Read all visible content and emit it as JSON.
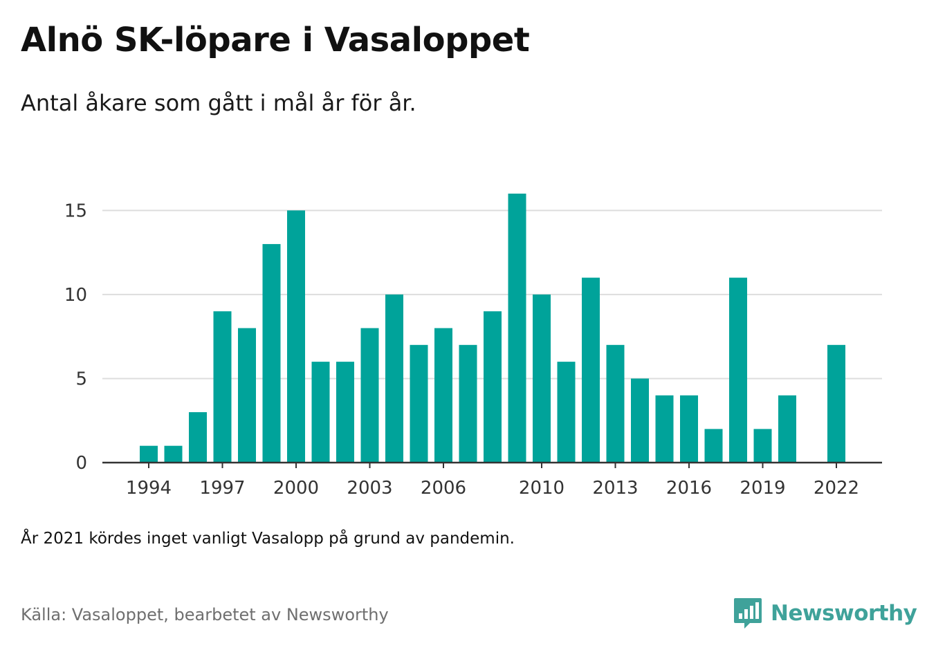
{
  "header": {
    "title": "Alnö SK-löpare i Vasaloppet",
    "subtitle": "Antal åkare som gått i mål år för år."
  },
  "footer": {
    "note": "År 2021 kördes inget vanligt Vasalopp på grund av pandemin.",
    "source": "Källa: Vasaloppet, bearbetet av Newsworthy",
    "brand_name": "Newsworthy",
    "brand_icon": "newsworthy-logo-icon"
  },
  "colors": {
    "bar": "#00a39a",
    "brand": "#3fa29a",
    "grid": "#dddddd",
    "axis": "#333333"
  },
  "chart_data": {
    "type": "bar",
    "title": "Alnö SK-löpare i Vasaloppet",
    "subtitle": "Antal åkare som gått i mål år för år.",
    "xlabel": "",
    "ylabel": "",
    "ylim": [
      0,
      16
    ],
    "yticks": [
      0,
      5,
      10,
      15
    ],
    "xticks": [
      "1994",
      "1997",
      "2000",
      "2003",
      "2006",
      "2010",
      "2013",
      "2016",
      "2019",
      "2022"
    ],
    "grid": true,
    "legend": "none",
    "categories": [
      "1994",
      "1995",
      "1996",
      "1997",
      "1998",
      "1999",
      "2000",
      "2001",
      "2002",
      "2003",
      "2004",
      "2005",
      "2006",
      "2007",
      "2008",
      "2009",
      "2010",
      "2011",
      "2012",
      "2013",
      "2014",
      "2015",
      "2016",
      "2017",
      "2018",
      "2019",
      "2020",
      "2021",
      "2022"
    ],
    "values": [
      1,
      1,
      3,
      9,
      8,
      13,
      15,
      6,
      6,
      8,
      10,
      7,
      8,
      7,
      9,
      16,
      10,
      6,
      11,
      7,
      5,
      4,
      4,
      2,
      11,
      2,
      4,
      null,
      7
    ]
  }
}
